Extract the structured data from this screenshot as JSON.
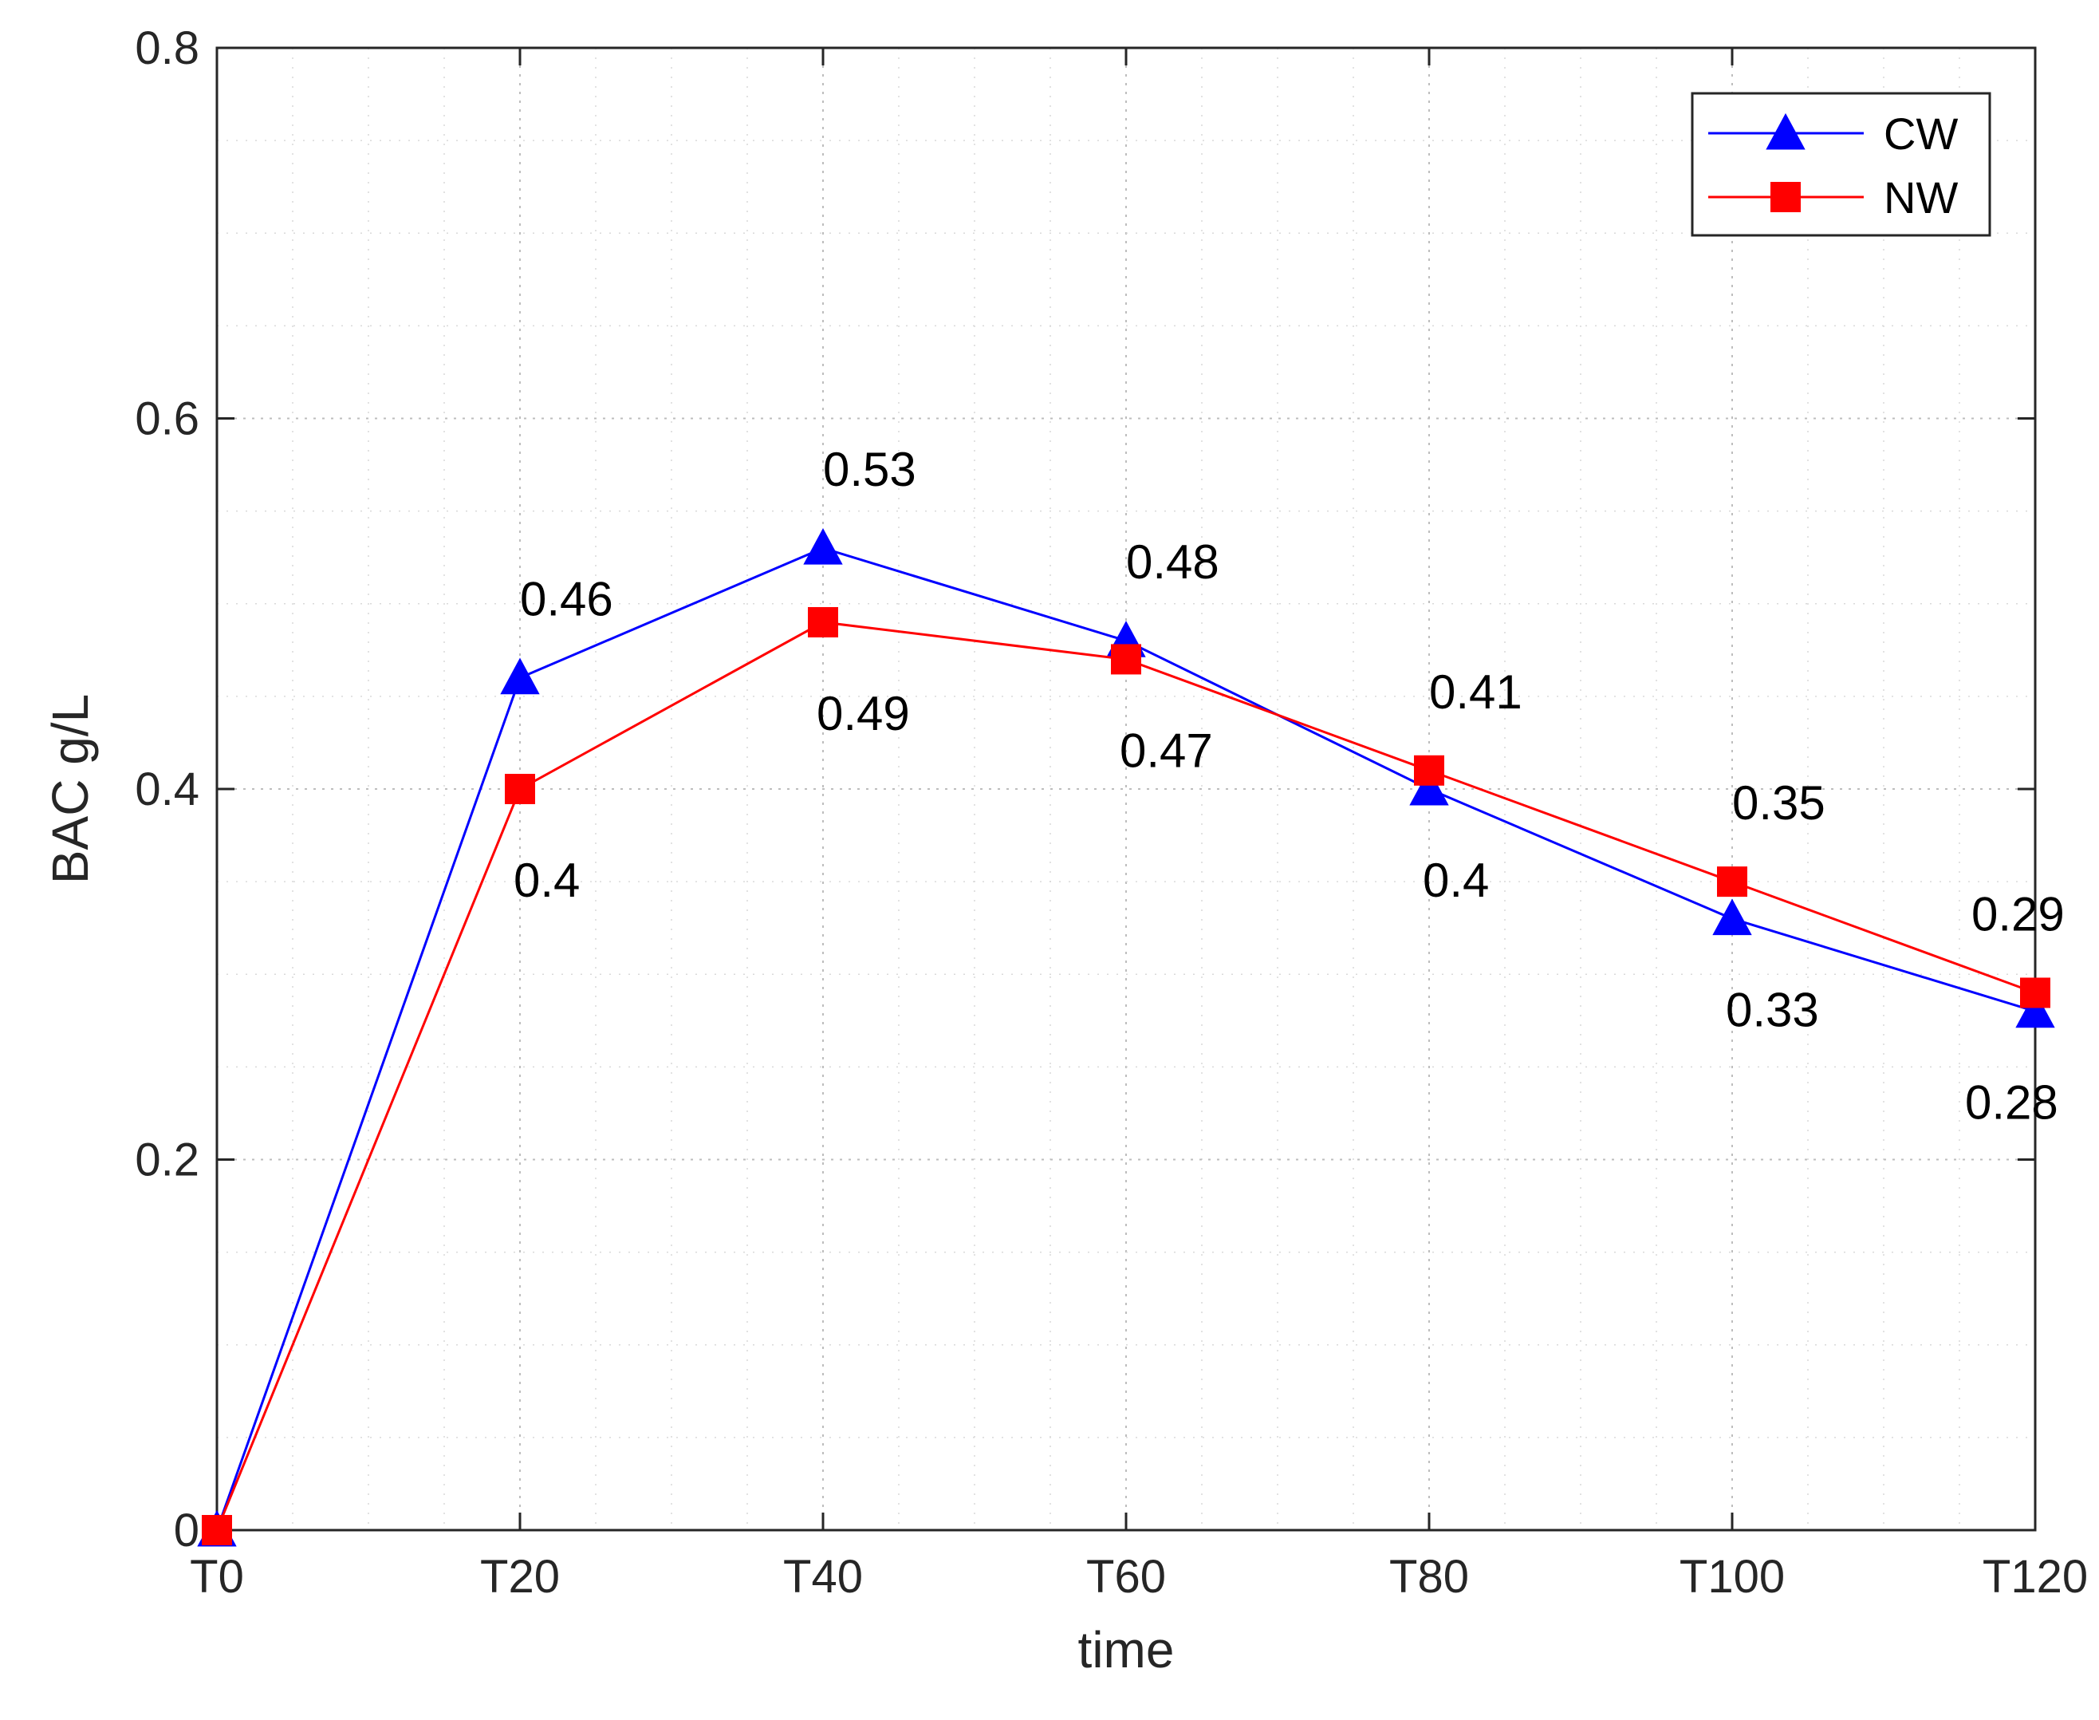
{
  "chart_data": {
    "type": "line",
    "title": "",
    "xlabel": "time",
    "ylabel": "BAC g/L",
    "categories": [
      "T0",
      "T20",
      "T40",
      "T60",
      "T80",
      "T100",
      "T120"
    ],
    "x": [
      0,
      20,
      40,
      60,
      80,
      100,
      120
    ],
    "xlim": [
      0,
      120
    ],
    "ylim": [
      0,
      0.8
    ],
    "yticks": [
      0,
      0.2,
      0.4,
      0.6,
      0.8
    ],
    "ytick_labels": [
      "0",
      "0.2",
      "0.4",
      "0.6",
      "0.8"
    ],
    "grid": "major and minor, dotted",
    "legend_position": "top-right",
    "series": [
      {
        "name": "CW",
        "color": "#0000ff",
        "marker": "triangle",
        "values": [
          0,
          0.46,
          0.53,
          0.48,
          0.4,
          0.33,
          0.28
        ],
        "labels": [
          "",
          "0.46",
          "0.53",
          "0.48",
          "0.4",
          "0.33",
          "0.28"
        ]
      },
      {
        "name": "NW",
        "color": "#ff0000",
        "marker": "square",
        "values": [
          0,
          0.4,
          0.49,
          0.47,
          0.41,
          0.35,
          0.29
        ],
        "labels": [
          "",
          "0.4",
          "0.49",
          "0.47",
          "0.41",
          "0.35",
          "0.29"
        ]
      }
    ]
  }
}
